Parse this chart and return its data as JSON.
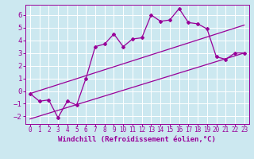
{
  "xlabel": "Windchill (Refroidissement éolien,°C)",
  "bg_color": "#cce8f0",
  "grid_color": "#ffffff",
  "line_color": "#990099",
  "xlim": [
    -0.5,
    23.5
  ],
  "ylim": [
    -2.6,
    6.8
  ],
  "xticks": [
    0,
    1,
    2,
    3,
    4,
    5,
    6,
    7,
    8,
    9,
    10,
    11,
    12,
    13,
    14,
    15,
    16,
    17,
    18,
    19,
    20,
    21,
    22,
    23
  ],
  "yticks": [
    -2,
    -1,
    0,
    1,
    2,
    3,
    4,
    5,
    6
  ],
  "zigzag_x": [
    0,
    1,
    2,
    3,
    4,
    5,
    6,
    7,
    8,
    9,
    10,
    11,
    12,
    13,
    14,
    15,
    16,
    17,
    18,
    19,
    20,
    21,
    22,
    23
  ],
  "zigzag_y": [
    -0.2,
    -0.8,
    -0.7,
    -2.1,
    -0.8,
    -1.1,
    1.0,
    3.5,
    3.7,
    4.5,
    3.5,
    4.1,
    4.2,
    6.0,
    5.5,
    5.6,
    6.5,
    5.4,
    5.3,
    4.9,
    2.7,
    2.5,
    3.0,
    3.0
  ],
  "line1_x": [
    0,
    23
  ],
  "line1_y": [
    -0.2,
    5.2
  ],
  "line2_x": [
    0,
    23
  ],
  "line2_y": [
    -2.2,
    3.0
  ],
  "font_size_xlabel": 6.5,
  "font_size_ytick": 6.5,
  "font_size_xtick": 5.5
}
